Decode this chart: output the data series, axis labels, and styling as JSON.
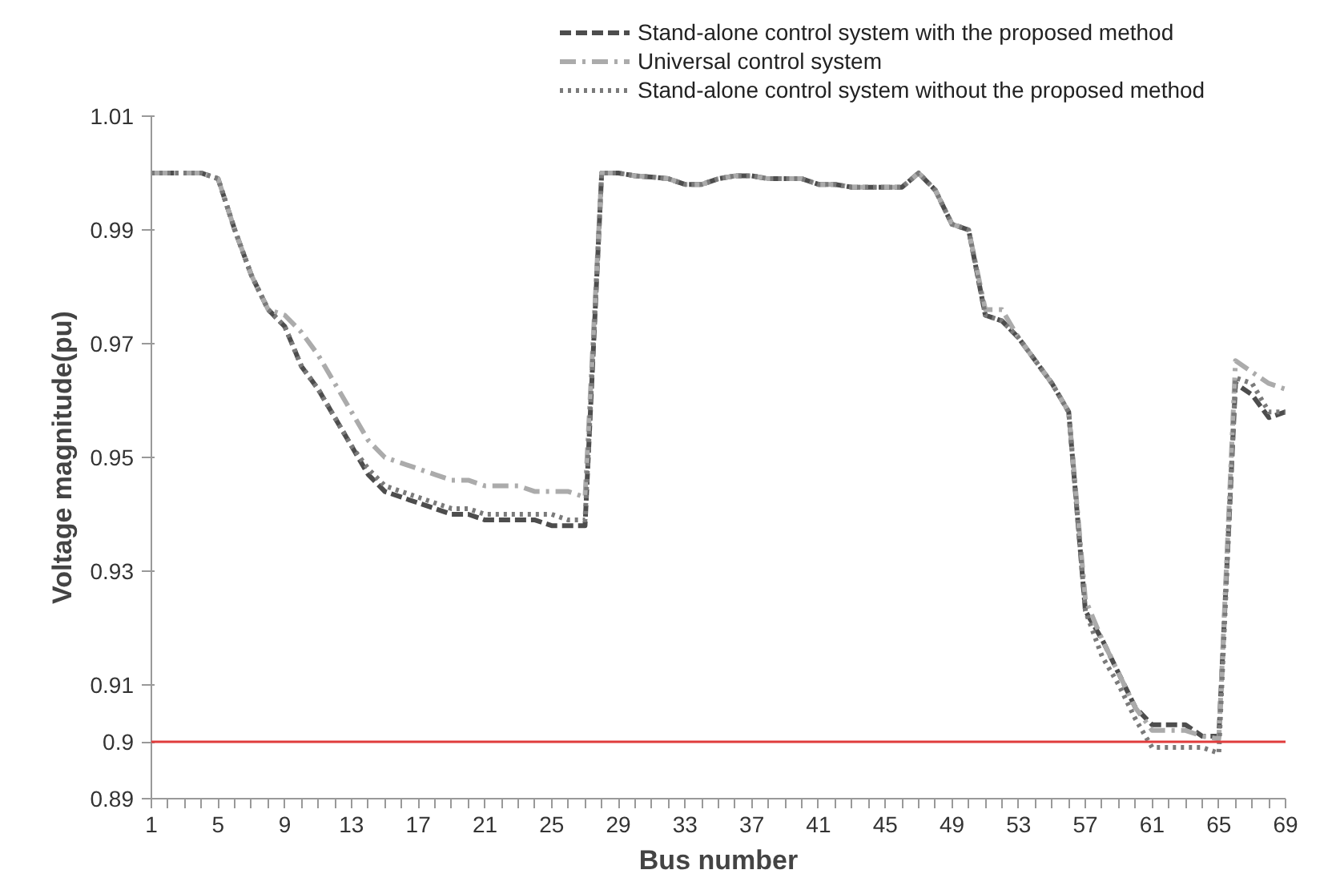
{
  "chart_data": {
    "type": "line",
    "xlabel": "Bus number",
    "ylabel": "Voltage magnitude(pu)",
    "x": [
      1,
      2,
      3,
      4,
      5,
      6,
      7,
      8,
      9,
      10,
      11,
      12,
      13,
      14,
      15,
      16,
      17,
      18,
      19,
      20,
      21,
      22,
      23,
      24,
      25,
      26,
      27,
      28,
      29,
      30,
      31,
      32,
      33,
      34,
      35,
      36,
      37,
      38,
      39,
      40,
      41,
      42,
      43,
      44,
      45,
      46,
      47,
      48,
      49,
      50,
      51,
      52,
      53,
      54,
      55,
      56,
      57,
      58,
      59,
      60,
      61,
      62,
      63,
      64,
      65,
      66,
      67,
      68,
      69
    ],
    "series": [
      {
        "name": "Stand-alone control system with the proposed method",
        "color": "#4d4d4d",
        "line_style": "dashed",
        "values": [
          1,
          1,
          1,
          1,
          0.999,
          0.99,
          0.982,
          0.976,
          0.973,
          0.966,
          0.962,
          0.957,
          0.952,
          0.947,
          0.944,
          0.943,
          0.942,
          0.941,
          0.94,
          0.94,
          0.939,
          0.939,
          0.939,
          0.939,
          0.938,
          0.938,
          0.938,
          1,
          1,
          0.9995,
          0.9993,
          0.999,
          0.998,
          0.998,
          0.999,
          0.9995,
          0.9995,
          0.999,
          0.999,
          0.999,
          0.998,
          0.998,
          0.9975,
          0.9975,
          0.9975,
          0.9975,
          1,
          0.997,
          0.991,
          0.99,
          0.975,
          0.974,
          0.971,
          0.967,
          0.963,
          0.958,
          0.923,
          0.918,
          0.912,
          0.906,
          0.903,
          0.903,
          0.903,
          0.901,
          0.901,
          0.963,
          0.961,
          0.957,
          0.958
        ]
      },
      {
        "name": "Universal control system",
        "color": "#ababab",
        "line_style": "dashdot",
        "values": [
          1,
          1,
          1,
          1,
          0.999,
          0.99,
          0.982,
          0.976,
          0.975,
          0.972,
          0.968,
          0.963,
          0.958,
          0.953,
          0.95,
          0.949,
          0.948,
          0.947,
          0.946,
          0.946,
          0.945,
          0.945,
          0.945,
          0.944,
          0.944,
          0.944,
          0.943,
          1,
          1,
          0.9995,
          0.9993,
          0.999,
          0.998,
          0.998,
          0.999,
          0.9995,
          0.9995,
          0.999,
          0.999,
          0.999,
          0.998,
          0.998,
          0.9975,
          0.9975,
          0.9975,
          0.9975,
          1,
          0.997,
          0.991,
          0.99,
          0.976,
          0.976,
          0.971,
          0.967,
          0.963,
          0.958,
          0.925,
          0.918,
          0.912,
          0.906,
          0.902,
          0.902,
          0.902,
          0.901,
          0.9005,
          0.967,
          0.965,
          0.963,
          0.962
        ]
      },
      {
        "name": "Stand-alone control system without the proposed method",
        "color": "#7a7a7a",
        "line_style": "dotted",
        "values": [
          1,
          1,
          1,
          1,
          0.999,
          0.99,
          0.982,
          0.976,
          0.973,
          0.966,
          0.962,
          0.957,
          0.952,
          0.948,
          0.945,
          0.944,
          0.943,
          0.942,
          0.941,
          0.941,
          0.94,
          0.94,
          0.94,
          0.94,
          0.94,
          0.939,
          0.939,
          1,
          1,
          0.9995,
          0.9993,
          0.999,
          0.998,
          0.998,
          0.999,
          0.9995,
          0.9995,
          0.999,
          0.999,
          0.999,
          0.998,
          0.998,
          0.9975,
          0.9975,
          0.9975,
          0.9975,
          1,
          0.997,
          0.991,
          0.99,
          0.975,
          0.974,
          0.971,
          0.967,
          0.963,
          0.958,
          0.923,
          0.915,
          0.91,
          0.904,
          0.899,
          0.899,
          0.899,
          0.899,
          0.898,
          0.964,
          0.963,
          0.958,
          0.958
        ]
      }
    ],
    "xlim": [
      1,
      69
    ],
    "xticks": [
      1,
      5,
      9,
      13,
      17,
      21,
      25,
      29,
      33,
      37,
      41,
      45,
      49,
      53,
      57,
      61,
      65,
      69
    ],
    "ylim": [
      0.89,
      1.01
    ],
    "yticks": [
      0.89,
      0.9,
      0.91,
      0.93,
      0.95,
      0.97,
      0.99,
      1.01
    ],
    "ref_lines": [
      {
        "axis": "y",
        "value": 0.9,
        "color": "#e03c3c"
      }
    ],
    "grid": false,
    "legend": "top right",
    "marker": "none"
  }
}
